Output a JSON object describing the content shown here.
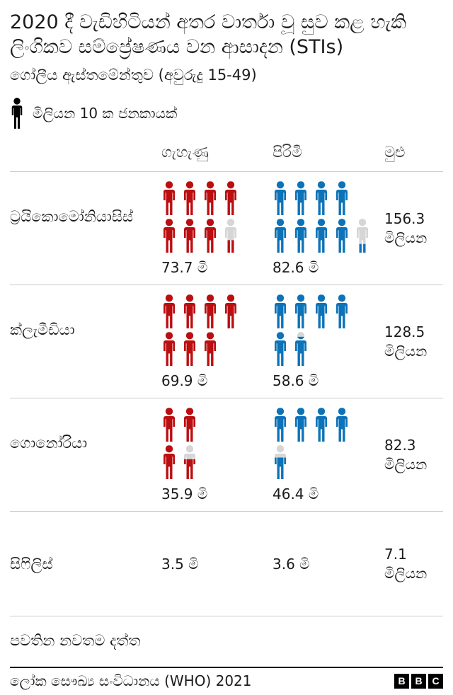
{
  "header": {
    "title": "2020 දී වැඩිහිටියන් අතර වාර්තා වූ සුව කළ හැකි ලිංගිකව සම්ප්‍රේෂණය වන ආසාදන (STIs)",
    "subtitle": "ගෝලීය ඇස්තමේන්තුව (අවුරුදු 15-49)"
  },
  "legend": {
    "label": "මිලියන 10 ක ජනකායක්",
    "icon": "person-icon"
  },
  "colors": {
    "women": "#bb0e10",
    "men": "#0d73b8",
    "empty": "#d6d6d6",
    "legend": "#000000",
    "divider": "#cccccc",
    "footer_rule": "#000000"
  },
  "chart_data": {
    "type": "pictogram",
    "unit_millions_per_icon": 10,
    "columns": {
      "women": "ගැහැණු",
      "men": "පිරිමි",
      "total": "මුළු"
    },
    "rows": [
      {
        "label": "ට්‍රයිකොමෝනියාසිස්",
        "women": {
          "value_millions": 73.7,
          "value_label": "73.7 මි",
          "icon_rows": [
            [
              1,
              1,
              1,
              1
            ],
            [
              1,
              1,
              1,
              0.37
            ]
          ]
        },
        "men": {
          "value_millions": 82.6,
          "value_label": "82.6 මි",
          "icon_rows": [
            [
              1,
              1,
              1,
              1
            ],
            [
              1,
              1,
              1,
              1,
              0.26
            ]
          ]
        },
        "total": {
          "value_millions": 156.3,
          "label_line1": "156.3",
          "label_line2": "මිලියන"
        }
      },
      {
        "label": "ක්ලැමීඩියා",
        "women": {
          "value_millions": 69.9,
          "value_label": "69.9 මි",
          "icon_rows": [
            [
              1,
              1,
              1,
              1
            ],
            [
              1,
              1,
              0.99
            ]
          ]
        },
        "men": {
          "value_millions": 58.6,
          "value_label": "58.6 මි",
          "icon_rows": [
            [
              1,
              1,
              1,
              1
            ],
            [
              1,
              0.86
            ]
          ]
        },
        "total": {
          "value_millions": 128.5,
          "label_line1": "128.5",
          "label_line2": "මිලියන"
        }
      },
      {
        "label": "ගොනෝරියා",
        "women": {
          "value_millions": 35.9,
          "value_label": "35.9 මි",
          "icon_rows": [
            [
              1,
              1
            ],
            [
              1,
              0.59
            ]
          ]
        },
        "men": {
          "value_millions": 46.4,
          "value_label": "46.4 මි",
          "icon_rows": [
            [
              1,
              1,
              1,
              1
            ],
            [
              0.64
            ]
          ]
        },
        "total": {
          "value_millions": 82.3,
          "label_line1": "82.3",
          "label_line2": "මිලියන"
        }
      },
      {
        "label": "සිෆිලිස්",
        "women": {
          "value_millions": 3.5,
          "value_label": "3.5 මි",
          "icon_rows": []
        },
        "men": {
          "value_millions": 3.6,
          "value_label": "3.6 මි",
          "icon_rows": []
        },
        "total": {
          "value_millions": 7.1,
          "label_line1": "7.1",
          "label_line2": "මිලියන"
        }
      }
    ]
  },
  "footer": {
    "note": "පවතින නවතම දත්ත",
    "source": "ලෝක සෞඛ්‍ය සංවිධානය (WHO) 2021",
    "logo_letters": [
      "B",
      "B",
      "C"
    ]
  }
}
